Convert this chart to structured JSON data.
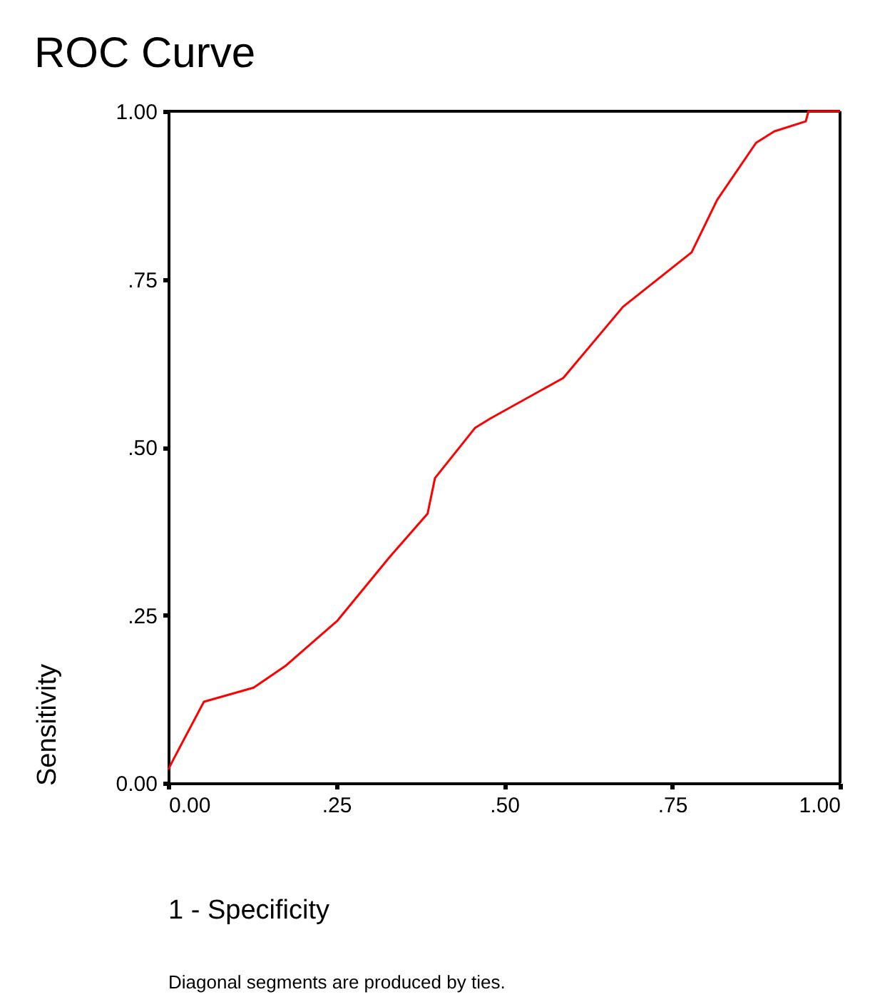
{
  "chart_data": {
    "type": "line",
    "title": "ROC Curve",
    "xlabel": "1 - Specificity",
    "ylabel": "Sensitivity",
    "annotations": [
      "Diagonal segments are produced by ties."
    ],
    "x": [
      0,
      0.008,
      0.053,
      0.127,
      0.174,
      0.252,
      0.33,
      0.386,
      0.397,
      0.457,
      0.48,
      0.588,
      0.677,
      0.779,
      0.817,
      0.875,
      0.902,
      0.949,
      0.953,
      1
    ],
    "series": [
      {
        "color": "#ff0000",
        "values": [
          0.02,
          0.036,
          0.121,
          0.142,
          0.174,
          0.242,
          0.337,
          0.401,
          0.454,
          0.529,
          0.543,
          0.603,
          0.709,
          0.79,
          0.868,
          0.953,
          0.97,
          0.985,
          1,
          1
        ]
      }
    ],
    "xlim": [
      0,
      1
    ],
    "ylim": [
      0,
      1
    ],
    "xticks": [
      {
        "value": 0,
        "label": "0.00"
      },
      {
        "value": 0.25,
        "label": ".25"
      },
      {
        "value": 0.5,
        "label": ".50"
      },
      {
        "value": 0.75,
        "label": ".75"
      },
      {
        "value": 1,
        "label": "1.00"
      }
    ],
    "yticks": [
      {
        "value": 0,
        "label": "0.00"
      },
      {
        "value": 0.25,
        "label": ".25"
      },
      {
        "value": 0.5,
        "label": ".50"
      },
      {
        "value": 0.75,
        "label": ".75"
      },
      {
        "value": 1,
        "label": "1.00"
      }
    ],
    "grid": false,
    "marker": "none",
    "line_style": "solid"
  }
}
